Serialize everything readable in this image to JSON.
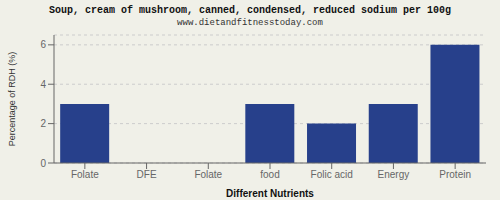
{
  "chart_data": {
    "type": "bar",
    "title": "Soup, cream of mushroom, canned, condensed, reduced sodium per 100g",
    "subtitle": "www.dietandfitnesstoday.com",
    "categories": [
      "Folate",
      "DFE",
      "Folate",
      "food",
      "Folic acid",
      "Energy",
      "Protein"
    ],
    "values": [
      3.0,
      0.0,
      0.0,
      3.0,
      2.0,
      3.0,
      6.0
    ],
    "color": "#27408B",
    "xlabel": "Different Nutrients",
    "ylabel": "Percentage of RDH (%)",
    "ylim": [
      0,
      6.5
    ],
    "yticks": [
      0,
      2,
      4,
      6
    ],
    "grid": true
  }
}
